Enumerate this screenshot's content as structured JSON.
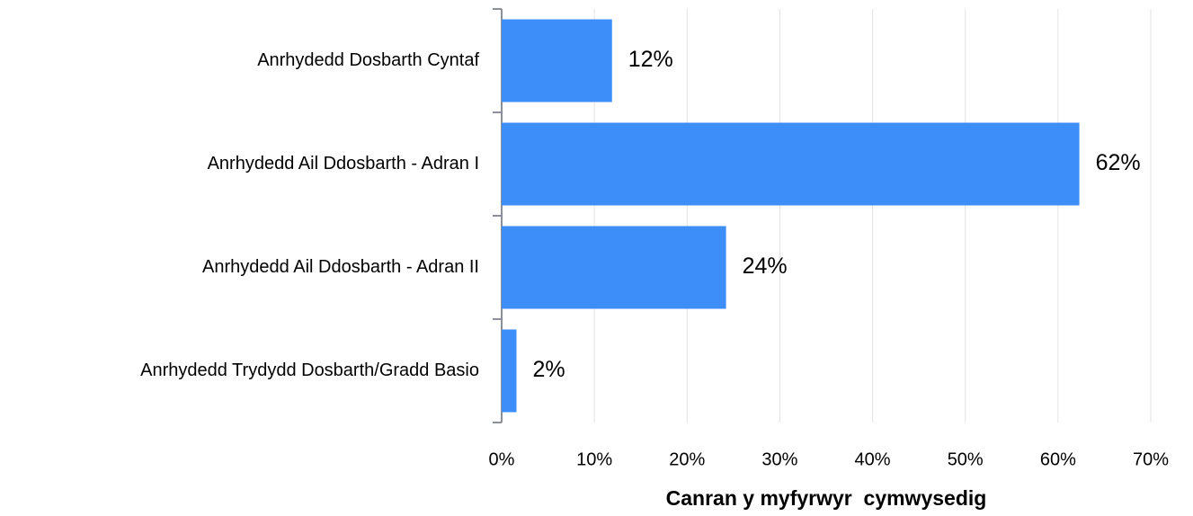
{
  "chart_data": {
    "type": "bar",
    "orientation": "horizontal",
    "x_label": "Canran y myfyrwyr  cymwysedig",
    "categories": [
      "Anrhydedd Dosbarth Cyntaf",
      "Anrhydedd Ail Ddosbarth - Adran I",
      "Anrhydedd Ail Ddosbarth - Adran II",
      "Anrhydedd Trydydd Dosbarth/Gradd Basio"
    ],
    "values": [
      11.9,
      62.3,
      24.2,
      1.6
    ],
    "value_labels": [
      "12%",
      "62%",
      "24%",
      "2%"
    ],
    "color": "#3d8ef8",
    "xlim": [
      0,
      70
    ],
    "xticks": [
      {
        "value": 0,
        "label": "0%"
      },
      {
        "value": 10,
        "label": "10%"
      },
      {
        "value": 20,
        "label": "20%"
      },
      {
        "value": 30,
        "label": "30%"
      },
      {
        "value": 40,
        "label": "40%"
      },
      {
        "value": 50,
        "label": "50%"
      },
      {
        "value": 60,
        "label": "60%"
      },
      {
        "value": 70,
        "label": "70%"
      }
    ],
    "grid": true
  }
}
